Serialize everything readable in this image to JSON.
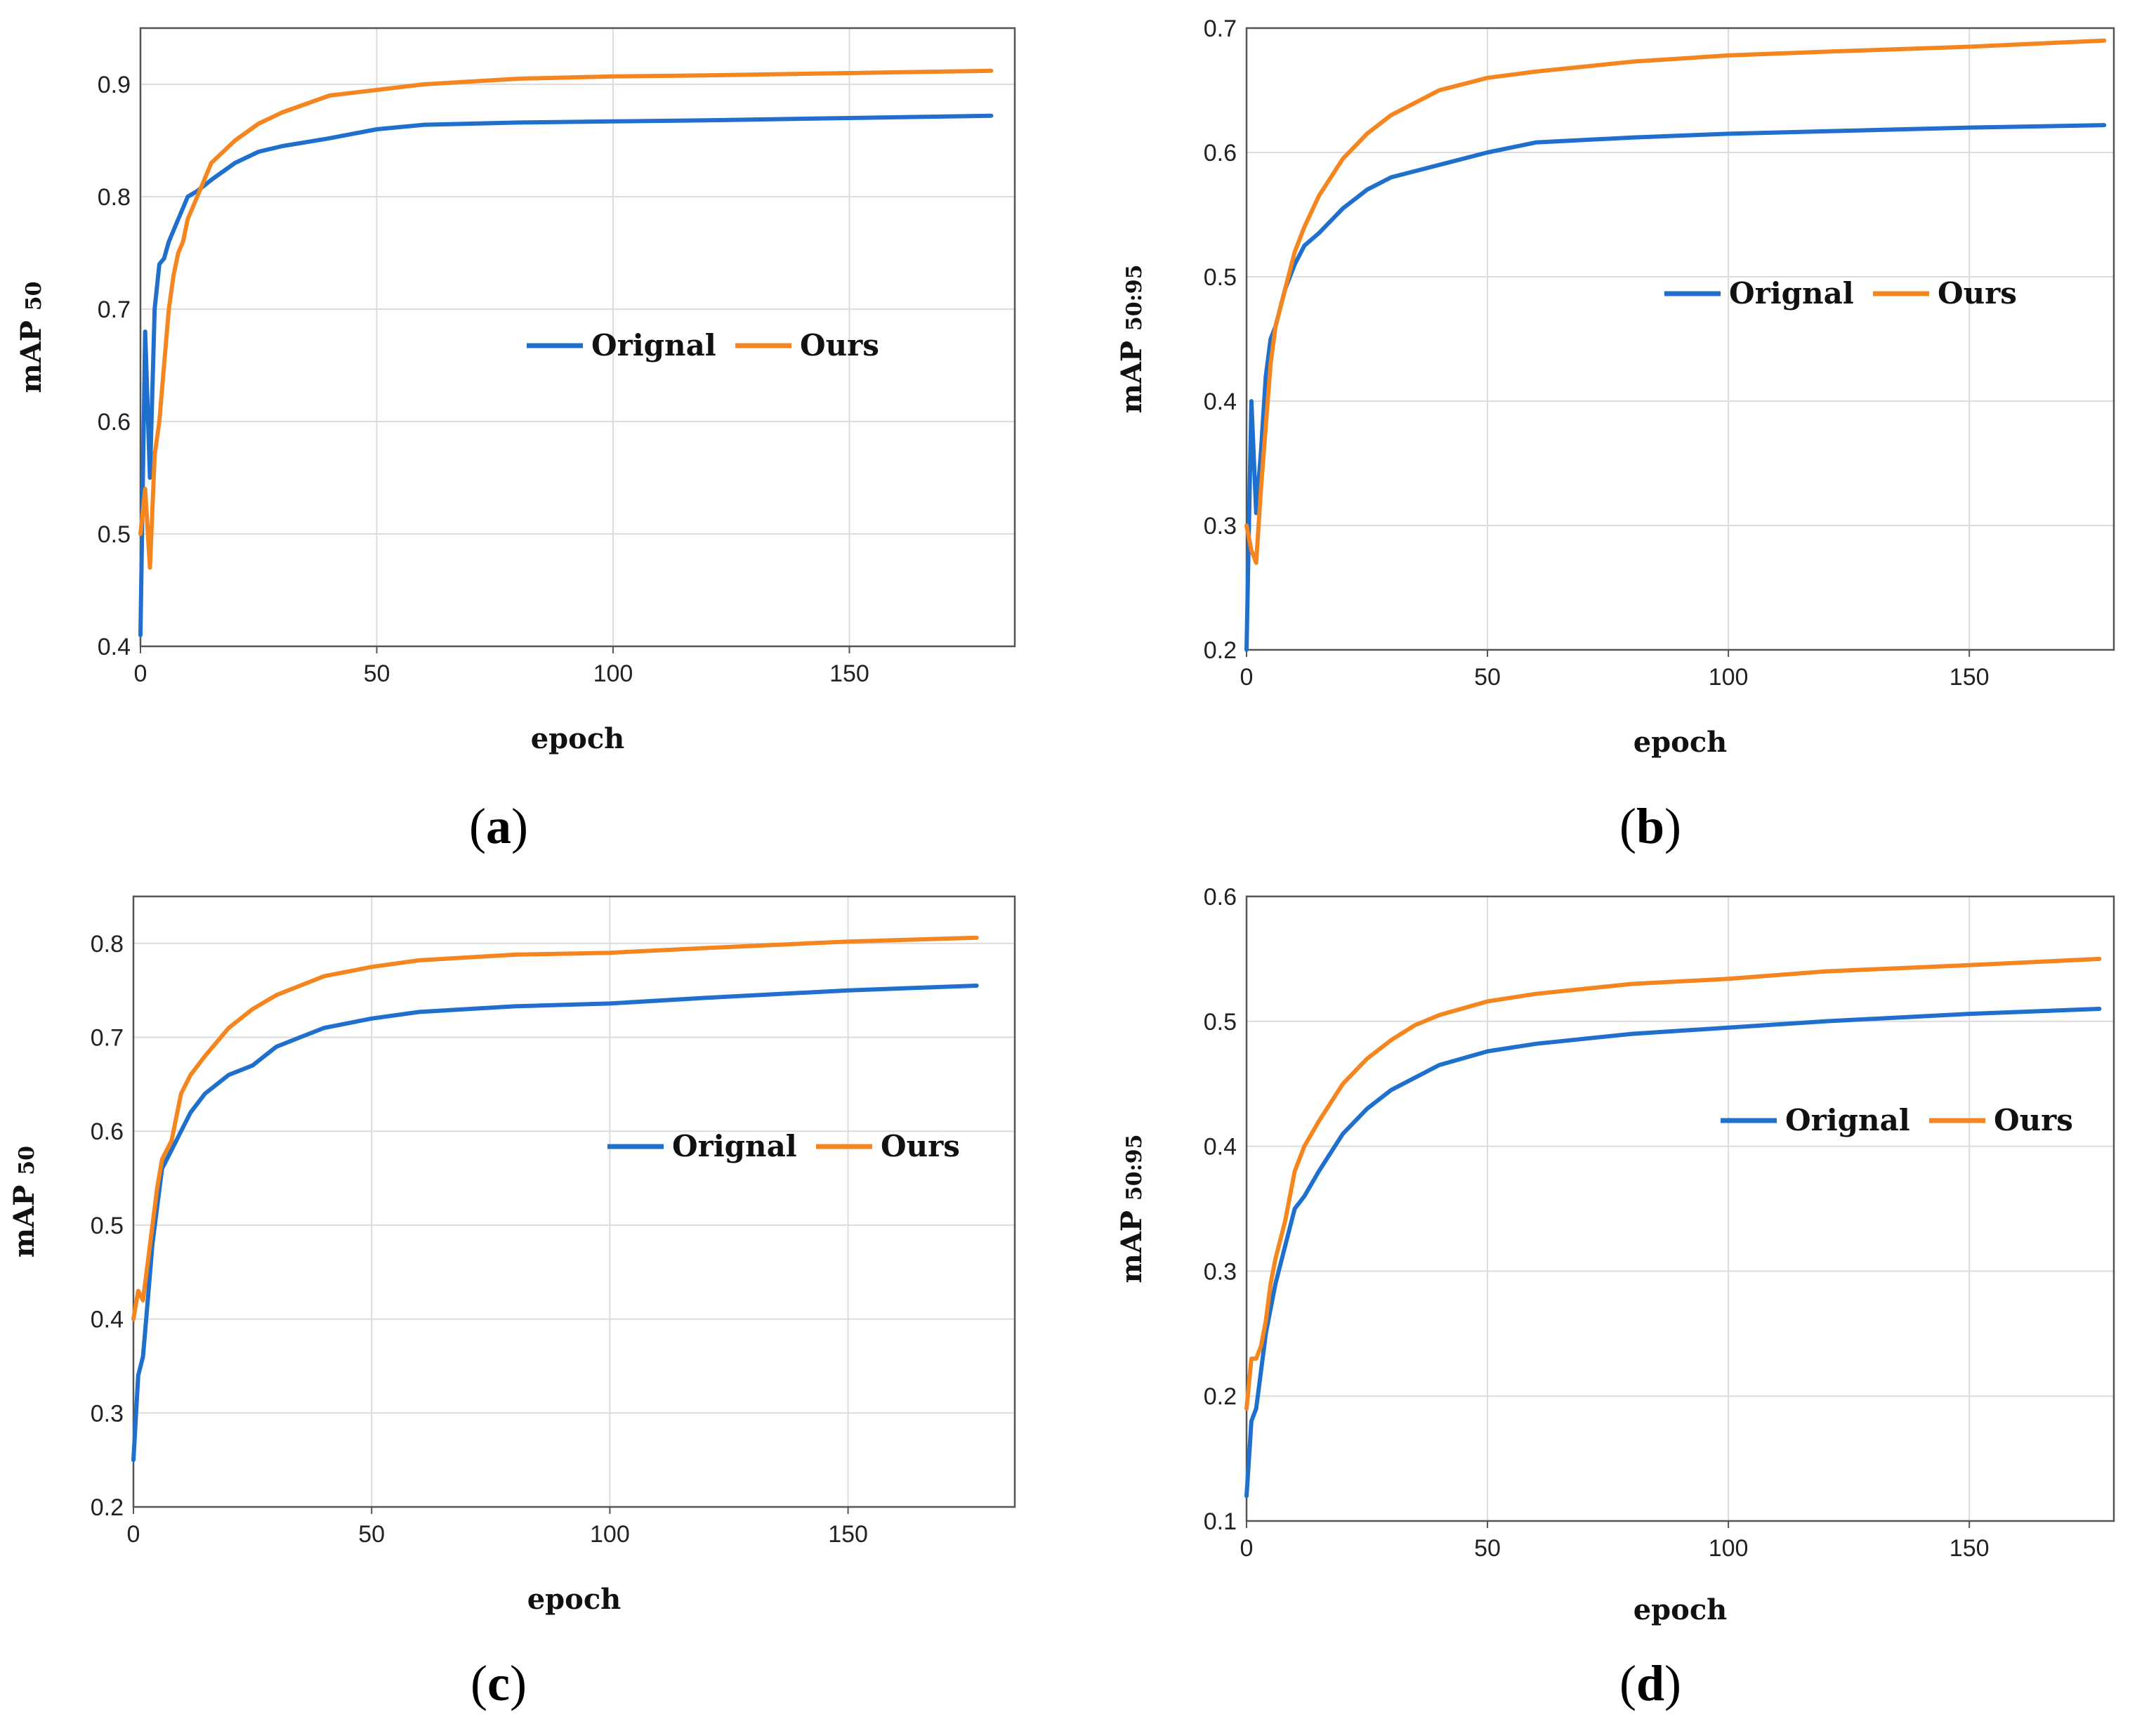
{
  "colors": {
    "orignal": "#1f6fcc",
    "ours": "#f5861f",
    "grid": "#dcdcdc",
    "axis": "#555555"
  },
  "chart_data": [
    {
      "type": "line",
      "panel_label": "a",
      "title": "",
      "xlabel": "epoch",
      "ylabel": "mAP",
      "ylabel_sub": "50",
      "xlim": [
        0,
        185
      ],
      "ylim": [
        0.4,
        0.95
      ],
      "xticks": [
        0,
        50,
        100,
        150
      ],
      "yticks": [
        0.4,
        0.5,
        0.6,
        0.7,
        0.8,
        0.9
      ],
      "legend": {
        "position": "center-right",
        "entries": [
          "Orignal",
          "Ours"
        ]
      },
      "grid": true,
      "series": [
        {
          "name": "Orignal",
          "x": [
            0,
            1,
            2,
            3,
            4,
            5,
            6,
            7,
            8,
            9,
            10,
            12,
            15,
            20,
            25,
            30,
            40,
            50,
            60,
            80,
            100,
            120,
            150,
            180
          ],
          "y": [
            0.41,
            0.68,
            0.55,
            0.7,
            0.74,
            0.745,
            0.76,
            0.77,
            0.78,
            0.79,
            0.8,
            0.805,
            0.815,
            0.83,
            0.84,
            0.845,
            0.852,
            0.86,
            0.864,
            0.866,
            0.867,
            0.868,
            0.87,
            0.872
          ]
        },
        {
          "name": "Ours",
          "x": [
            0,
            1,
            2,
            3,
            4,
            5,
            6,
            7,
            8,
            9,
            10,
            12,
            15,
            20,
            25,
            30,
            40,
            50,
            60,
            80,
            100,
            120,
            150,
            180
          ],
          "y": [
            0.5,
            0.54,
            0.47,
            0.57,
            0.6,
            0.65,
            0.7,
            0.73,
            0.75,
            0.76,
            0.78,
            0.8,
            0.83,
            0.85,
            0.865,
            0.875,
            0.89,
            0.895,
            0.9,
            0.905,
            0.907,
            0.908,
            0.91,
            0.912
          ]
        }
      ]
    },
    {
      "type": "line",
      "panel_label": "b",
      "title": "",
      "xlabel": "epoch",
      "ylabel": "mAP",
      "ylabel_sub": "50:95",
      "xlim": [
        0,
        180
      ],
      "ylim": [
        0.2,
        0.7
      ],
      "xticks": [
        0,
        50,
        100,
        150
      ],
      "yticks": [
        0.2,
        0.3,
        0.4,
        0.5,
        0.6,
        0.7
      ],
      "legend": {
        "position": "center-right",
        "entries": [
          "Orignal",
          "Ours"
        ]
      },
      "grid": true,
      "series": [
        {
          "name": "Orignal",
          "x": [
            0,
            1,
            2,
            3,
            4,
            5,
            6,
            8,
            10,
            12,
            15,
            20,
            25,
            30,
            40,
            50,
            60,
            80,
            100,
            120,
            150,
            178
          ],
          "y": [
            0.2,
            0.4,
            0.31,
            0.36,
            0.42,
            0.45,
            0.46,
            0.49,
            0.51,
            0.525,
            0.535,
            0.555,
            0.57,
            0.58,
            0.59,
            0.6,
            0.608,
            0.612,
            0.615,
            0.617,
            0.62,
            0.622
          ]
        },
        {
          "name": "Ours",
          "x": [
            0,
            1,
            2,
            3,
            4,
            5,
            6,
            8,
            10,
            12,
            15,
            20,
            25,
            30,
            40,
            50,
            60,
            80,
            100,
            120,
            150,
            178
          ],
          "y": [
            0.3,
            0.28,
            0.27,
            0.33,
            0.38,
            0.43,
            0.46,
            0.49,
            0.52,
            0.54,
            0.565,
            0.595,
            0.615,
            0.63,
            0.65,
            0.66,
            0.665,
            0.673,
            0.678,
            0.681,
            0.685,
            0.69
          ]
        }
      ]
    },
    {
      "type": "line",
      "panel_label": "c",
      "title": "",
      "xlabel": "epoch",
      "ylabel": "mAP",
      "ylabel_sub": "50",
      "xlim": [
        0,
        185
      ],
      "ylim": [
        0.2,
        0.85
      ],
      "xticks": [
        0,
        50,
        100,
        150
      ],
      "yticks": [
        0.2,
        0.3,
        0.4,
        0.5,
        0.6,
        0.7,
        0.8
      ],
      "legend": {
        "position": "center-right",
        "entries": [
          "Orignal",
          "Ours"
        ]
      },
      "grid": true,
      "series": [
        {
          "name": "Orignal",
          "x": [
            0,
            1,
            2,
            3,
            4,
            5,
            6,
            8,
            10,
            12,
            15,
            20,
            25,
            30,
            35,
            40,
            50,
            60,
            80,
            100,
            120,
            150,
            177
          ],
          "y": [
            0.25,
            0.34,
            0.36,
            0.42,
            0.48,
            0.52,
            0.56,
            0.58,
            0.6,
            0.62,
            0.64,
            0.66,
            0.67,
            0.69,
            0.7,
            0.71,
            0.72,
            0.727,
            0.733,
            0.736,
            0.742,
            0.75,
            0.755
          ]
        },
        {
          "name": "Ours",
          "x": [
            0,
            1,
            2,
            3,
            4,
            5,
            6,
            8,
            10,
            12,
            15,
            20,
            25,
            30,
            35,
            40,
            50,
            60,
            80,
            100,
            120,
            150,
            177
          ],
          "y": [
            0.4,
            0.43,
            0.42,
            0.46,
            0.5,
            0.54,
            0.57,
            0.59,
            0.64,
            0.66,
            0.68,
            0.71,
            0.73,
            0.745,
            0.755,
            0.765,
            0.775,
            0.782,
            0.788,
            0.79,
            0.795,
            0.802,
            0.806
          ]
        }
      ]
    },
    {
      "type": "line",
      "panel_label": "d",
      "title": "",
      "xlabel": "epoch",
      "ylabel": "mAP",
      "ylabel_sub": "50:95",
      "xlim": [
        0,
        180
      ],
      "ylim": [
        0.1,
        0.6
      ],
      "xticks": [
        0,
        50,
        100,
        150
      ],
      "yticks": [
        0.1,
        0.2,
        0.3,
        0.4,
        0.5,
        0.6
      ],
      "legend": {
        "position": "center-right",
        "entries": [
          "Orignal",
          "Ours"
        ]
      },
      "grid": true,
      "series": [
        {
          "name": "Orignal",
          "x": [
            0,
            1,
            2,
            3,
            4,
            5,
            6,
            8,
            10,
            12,
            15,
            20,
            25,
            30,
            35,
            40,
            50,
            60,
            80,
            100,
            120,
            150,
            177
          ],
          "y": [
            0.12,
            0.18,
            0.19,
            0.22,
            0.25,
            0.27,
            0.29,
            0.32,
            0.35,
            0.36,
            0.38,
            0.41,
            0.43,
            0.445,
            0.455,
            0.465,
            0.476,
            0.482,
            0.49,
            0.495,
            0.5,
            0.506,
            0.51
          ]
        },
        {
          "name": "Ours",
          "x": [
            0,
            1,
            2,
            3,
            4,
            5,
            6,
            8,
            10,
            12,
            15,
            20,
            25,
            30,
            35,
            40,
            50,
            60,
            80,
            100,
            120,
            150,
            177
          ],
          "y": [
            0.19,
            0.23,
            0.23,
            0.24,
            0.26,
            0.29,
            0.31,
            0.34,
            0.38,
            0.4,
            0.42,
            0.45,
            0.47,
            0.485,
            0.497,
            0.505,
            0.516,
            0.522,
            0.53,
            0.534,
            0.54,
            0.545,
            0.55
          ]
        }
      ]
    }
  ]
}
